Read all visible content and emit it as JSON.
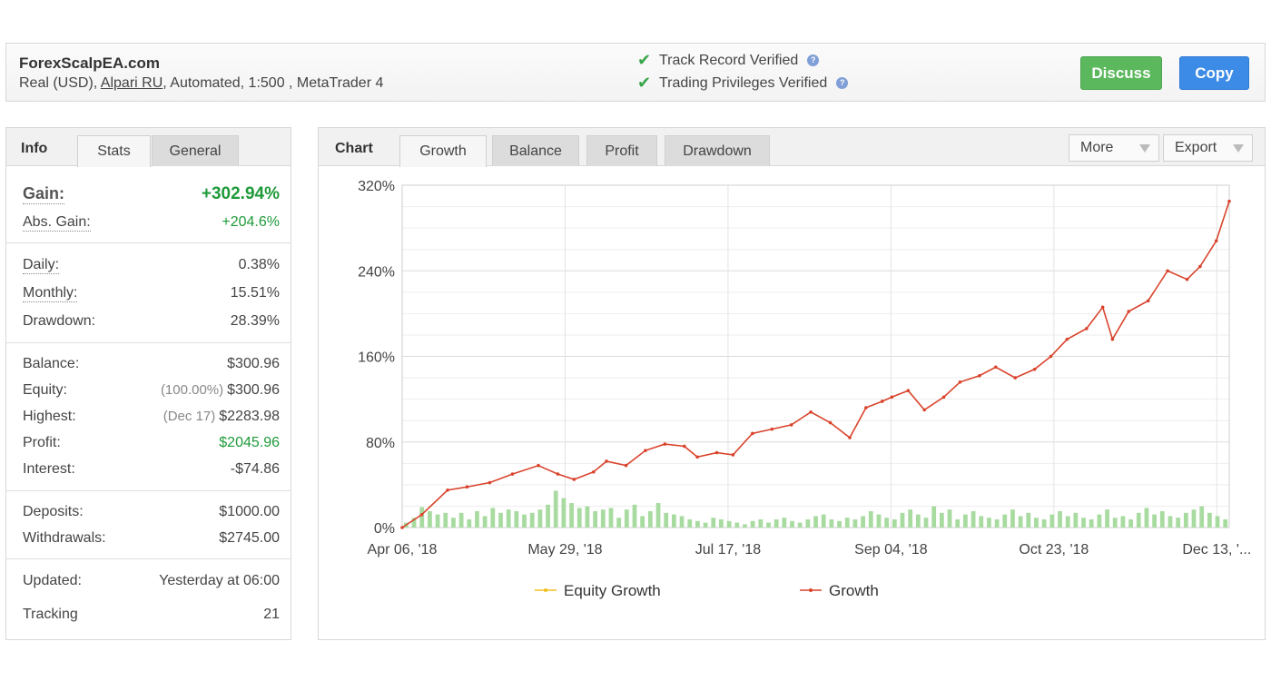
{
  "header": {
    "account_name": "ForexScalpEA.com",
    "details_prefix": "Real (USD), ",
    "broker": "Alpari RU",
    "details_suffix": ", Automated, 1:500 , MetaTrader 4",
    "verifications": [
      {
        "label": "Track Record Verified"
      },
      {
        "label": "Trading Privileges Verified"
      }
    ],
    "discuss_label": "Discuss",
    "copy_label": "Copy",
    "colors": {
      "discuss": "#5bb85d",
      "copy": "#3c8be6",
      "verified": "#3aa64a"
    }
  },
  "info": {
    "title": "Info",
    "tabs": [
      {
        "label": "Stats",
        "active": true
      },
      {
        "label": "General",
        "active": false
      }
    ],
    "gain": {
      "label": "Gain:",
      "value": "+302.94%"
    },
    "abs_gain": {
      "label": "Abs. Gain:",
      "value": "+204.6%"
    },
    "daily": {
      "label": "Daily:",
      "value": "0.38%"
    },
    "monthly": {
      "label": "Monthly:",
      "value": "15.51%"
    },
    "drawdown": {
      "label": "Drawdown:",
      "value": "28.39%"
    },
    "balance": {
      "label": "Balance:",
      "value": "$300.96"
    },
    "equity": {
      "label": "Equity:",
      "sub": "(100.00%)",
      "value": "$300.96"
    },
    "highest": {
      "label": "Highest:",
      "sub": "(Dec 17)",
      "value": "$2283.98"
    },
    "profit": {
      "label": "Profit:",
      "value": "$2045.96"
    },
    "interest": {
      "label": "Interest:",
      "value": "-$74.86"
    },
    "deposits": {
      "label": "Deposits:",
      "value": "$1000.00"
    },
    "withdrawals": {
      "label": "Withdrawals:",
      "value": "$2745.00"
    },
    "updated": {
      "label": "Updated:",
      "value": "Yesterday at 06:00"
    },
    "tracking": {
      "label": "Tracking",
      "value": "21"
    }
  },
  "chart_panel": {
    "title": "Chart",
    "tabs": [
      {
        "label": "Growth",
        "active": true
      },
      {
        "label": "Balance",
        "active": false
      },
      {
        "label": "Profit",
        "active": false
      },
      {
        "label": "Drawdown",
        "active": false
      }
    ],
    "more_label": "More",
    "export_label": "Export"
  },
  "chart_data": {
    "type": "line",
    "y_ticks": [
      "0%",
      "80%",
      "160%",
      "240%",
      "320%"
    ],
    "x_ticks": [
      "Apr 06, '18",
      "May 29, '18",
      "Jul 17, '18",
      "Sep 04, '18",
      "Oct 23, '18",
      "Dec 13, '..."
    ],
    "ylim": [
      0,
      320
    ],
    "grid": true,
    "legend": [
      "Equity Growth",
      "Growth"
    ],
    "legend_position": "bottom",
    "series": [
      {
        "name": "Growth",
        "color": "#d9432c",
        "x": [
          "2018-04-06",
          "2018-04-12",
          "2018-04-20",
          "2018-04-26",
          "2018-05-03",
          "2018-05-10",
          "2018-05-18",
          "2018-05-24",
          "2018-05-29",
          "2018-06-04",
          "2018-06-08",
          "2018-06-14",
          "2018-06-20",
          "2018-06-26",
          "2018-07-02",
          "2018-07-06",
          "2018-07-12",
          "2018-07-17",
          "2018-07-23",
          "2018-07-29",
          "2018-08-04",
          "2018-08-10",
          "2018-08-16",
          "2018-08-22",
          "2018-08-27",
          "2018-09-01",
          "2018-09-04",
          "2018-09-09",
          "2018-09-14",
          "2018-09-20",
          "2018-09-25",
          "2018-10-01",
          "2018-10-06",
          "2018-10-12",
          "2018-10-18",
          "2018-10-23",
          "2018-10-28",
          "2018-11-03",
          "2018-11-08",
          "2018-11-11",
          "2018-11-16",
          "2018-11-22",
          "2018-11-28",
          "2018-12-04",
          "2018-12-08",
          "2018-12-13",
          "2018-12-17"
        ],
        "y": [
          0,
          12,
          35,
          38,
          42,
          50,
          58,
          50,
          45,
          52,
          62,
          58,
          72,
          78,
          76,
          66,
          70,
          68,
          88,
          92,
          96,
          108,
          98,
          84,
          112,
          118,
          122,
          128,
          110,
          122,
          136,
          142,
          150,
          140,
          148,
          160,
          176,
          186,
          206,
          176,
          202,
          212,
          240,
          232,
          244,
          268,
          305
        ]
      },
      {
        "name": "Equity Growth",
        "color": "#f0c020",
        "x": [
          "2018-04-06",
          "2018-12-17"
        ],
        "y": [
          0,
          305
        ]
      }
    ],
    "bars": {
      "color": "#a8dba0",
      "x_start": "2018-04-06",
      "x_end": "2018-12-17",
      "heights": [
        6,
        12,
        25,
        20,
        16,
        18,
        12,
        18,
        10,
        20,
        14,
        24,
        18,
        22,
        20,
        16,
        18,
        22,
        28,
        45,
        36,
        30,
        24,
        26,
        20,
        22,
        24,
        12,
        22,
        28,
        14,
        20,
        30,
        18,
        16,
        14,
        10,
        8,
        6,
        12,
        10,
        8,
        6,
        4,
        8,
        10,
        6,
        10,
        12,
        8,
        6,
        10,
        14,
        16,
        10,
        8,
        12,
        10,
        14,
        20,
        16,
        12,
        10,
        18,
        22,
        16,
        12,
        26,
        18,
        22,
        10,
        16,
        20,
        14,
        12,
        10,
        16,
        22,
        14,
        18,
        12,
        10,
        16,
        20,
        14,
        18,
        12,
        10,
        16,
        22,
        12,
        14,
        10,
        18,
        24,
        16,
        20,
        14,
        12,
        18,
        22,
        26,
        18,
        14,
        10
      ]
    }
  }
}
